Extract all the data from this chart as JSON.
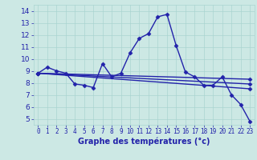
{
  "title": "Graphe des températures (°c)",
  "background_color": "#cce8e4",
  "line_color": "#2222aa",
  "xlim": [
    -0.5,
    23.5
  ],
  "ylim": [
    4.5,
    14.5
  ],
  "xticks": [
    0,
    1,
    2,
    3,
    4,
    5,
    6,
    7,
    8,
    9,
    10,
    11,
    12,
    13,
    14,
    15,
    16,
    17,
    18,
    19,
    20,
    21,
    22,
    23
  ],
  "yticks": [
    5,
    6,
    7,
    8,
    9,
    10,
    11,
    12,
    13,
    14
  ],
  "series": [
    {
      "x": [
        0,
        1,
        2,
        3,
        4,
        5,
        6,
        7,
        8,
        9,
        10,
        11,
        12,
        13,
        14,
        15,
        16,
        17,
        18,
        19,
        20,
        21,
        22,
        23
      ],
      "y": [
        8.8,
        9.3,
        9.0,
        8.8,
        7.9,
        7.8,
        7.6,
        9.6,
        8.5,
        8.8,
        10.5,
        11.7,
        12.1,
        13.5,
        13.7,
        11.1,
        8.9,
        8.5,
        7.8,
        7.8,
        8.5,
        7.0,
        6.2,
        4.8
      ]
    },
    {
      "x": [
        0,
        23
      ],
      "y": [
        8.8,
        7.5
      ]
    },
    {
      "x": [
        0,
        23
      ],
      "y": [
        8.8,
        7.9
      ]
    },
    {
      "x": [
        0,
        23
      ],
      "y": [
        8.8,
        8.3
      ]
    }
  ],
  "grid_color": "#aad4d0",
  "marker": "D",
  "markersize": 2.5,
  "linewidth": 1.0,
  "xlabel_fontsize": 7,
  "xlabel_fontweight": "bold",
  "tick_labelsize": 5.5,
  "ytick_labelsize": 6.5
}
